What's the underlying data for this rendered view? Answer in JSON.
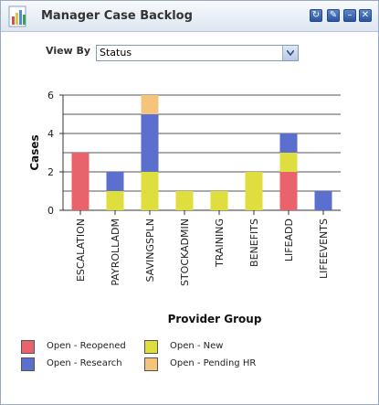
{
  "pagelet": {
    "title": "Manager Case Backlog",
    "controls": {
      "refresh": "refresh-icon",
      "edit": "edit-icon",
      "minimize": "minimize-icon",
      "close": "close-icon"
    }
  },
  "view_by": {
    "label": "View By",
    "selected": "Status"
  },
  "legend": [
    {
      "label": "Open - Reopened",
      "color": "#e8636b"
    },
    {
      "label": "Open - New",
      "color": "#dede3e"
    },
    {
      "label": "Open - Research",
      "color": "#5b6fcf"
    },
    {
      "label": "Open - Pending HR",
      "color": "#f5c47c"
    }
  ],
  "chart_data": {
    "type": "bar",
    "stacked": true,
    "categories": [
      "ESCALATION",
      "PAYROLLADM",
      "SAVINGSPLN",
      "STOCKADMIN",
      "TRAINING",
      "BENEFITS",
      "LIFEADD",
      "LIFEEVENTS"
    ],
    "series": [
      {
        "name": "Open - Reopened",
        "color": "#e8636b",
        "values": [
          3,
          0,
          0,
          0,
          0,
          0,
          2,
          0
        ]
      },
      {
        "name": "Open - New",
        "color": "#dede3e",
        "values": [
          0,
          1,
          2,
          1,
          1,
          2,
          1,
          0
        ]
      },
      {
        "name": "Open - Research",
        "color": "#5b6fcf",
        "values": [
          0,
          1,
          3,
          0,
          0,
          0,
          1,
          1
        ]
      },
      {
        "name": "Open - Pending HR",
        "color": "#f5c47c",
        "values": [
          0,
          0,
          1,
          0,
          0,
          0,
          0,
          0
        ]
      }
    ],
    "ylabel": "Cases",
    "xlabel": "Provider Group",
    "ylim": [
      0,
      6
    ],
    "yticks": [
      "0",
      "2",
      "4",
      "6"
    ],
    "grid": true
  }
}
